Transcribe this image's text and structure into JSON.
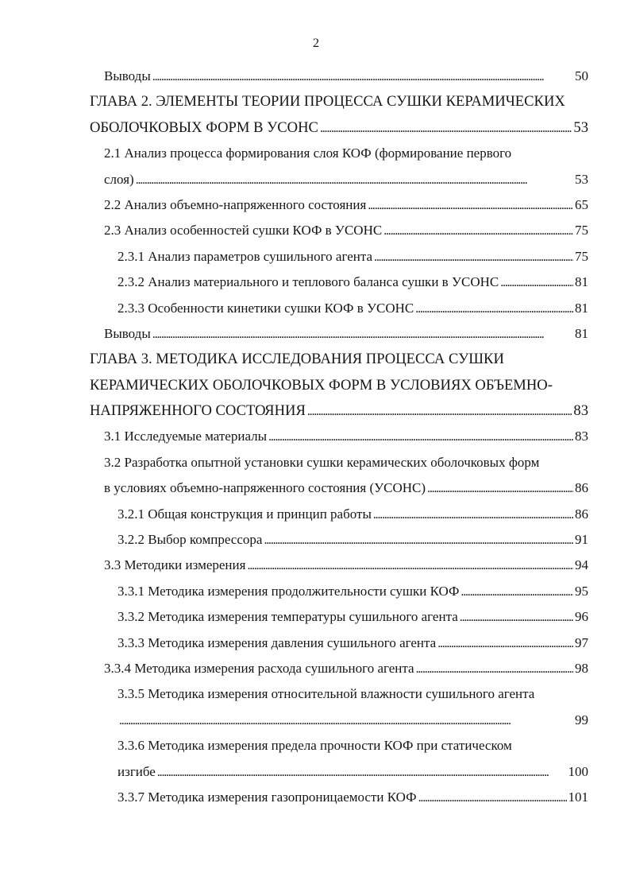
{
  "page_number": "2",
  "entries": [
    {
      "level": 1,
      "lines": [
        "Выводы"
      ],
      "page": "50"
    },
    {
      "level": 0,
      "lines": [
        "ГЛАВА 2. ЭЛЕМЕНТЫ ТЕОРИИ ПРОЦЕССА СУШКИ КЕРАМИЧЕСКИХ",
        "ОБОЛОЧКОВЫХ ФОРМ В УСОНС"
      ],
      "page": "53"
    },
    {
      "level": 1,
      "lines": [
        "2.1 Анализ процесса формирования слоя КОФ (формирование первого",
        "слоя)"
      ],
      "page": "53"
    },
    {
      "level": 1,
      "lines": [
        "2.2 Анализ объемно-напряженного состояния"
      ],
      "page": "65"
    },
    {
      "level": 1,
      "lines": [
        "2.3 Анализ особенностей сушки КОФ в УСОНС"
      ],
      "page": "75"
    },
    {
      "level": 2,
      "lines": [
        "2.3.1 Анализ параметров сушильного агента"
      ],
      "page": "75"
    },
    {
      "level": 2,
      "lines": [
        "2.3.2  Анализ материального и теплового баланса сушки в УСОНС"
      ],
      "page": "81"
    },
    {
      "level": 2,
      "lines": [
        "2.3.3  Особенности кинетики сушки КОФ в УСОНС"
      ],
      "page": "81"
    },
    {
      "level": 1,
      "lines": [
        "Выводы"
      ],
      "page": "81"
    },
    {
      "level": 0,
      "lines": [
        "ГЛАВА 3. МЕТОДИКА ИССЛЕДОВАНИЯ ПРОЦЕССА СУШКИ",
        "КЕРАМИЧЕСКИХ ОБОЛОЧКОВЫХ ФОРМ В УСЛОВИЯХ ОБЪЕМНО-",
        "НАПРЯЖЕННОГО СОСТОЯНИЯ"
      ],
      "page": "83"
    },
    {
      "level": 1,
      "lines": [
        "3.1 Исследуемые материалы"
      ],
      "page": "83"
    },
    {
      "level": 1,
      "lines": [
        "3.2 Разработка опытной установки сушки керамических оболочковых форм",
        "в условиях объемно-напряженного состояния (УСОНС)"
      ],
      "page": "86"
    },
    {
      "level": 2,
      "lines": [
        "3.2.1 Общая конструкция и принцип работы"
      ],
      "page": "86"
    },
    {
      "level": 2,
      "lines": [
        "3.2.2 Выбор компрессора"
      ],
      "page": "91"
    },
    {
      "level": 1,
      "lines": [
        "3.3 Методики измерения"
      ],
      "page": "94"
    },
    {
      "level": 2,
      "lines": [
        "3.3.1 Методика измерения продолжительности сушки КОФ"
      ],
      "page": "95"
    },
    {
      "level": 2,
      "lines": [
        "3.3.2 Методика измерения температуры сушильного агента"
      ],
      "page": "96"
    },
    {
      "level": 2,
      "lines": [
        "3.3.3 Методика измерения давления сушильного агента"
      ],
      "page": "97"
    },
    {
      "level": 1,
      "lines": [
        "3.3.4 Методика измерения расхода сушильного агента"
      ],
      "page": "98"
    },
    {
      "level": 2,
      "lines": [
        "3.3.5 Методика измерения относительной влажности сушильного агента",
        ""
      ],
      "page": "99"
    },
    {
      "level": 2,
      "lines": [
        "3.3.6 Методика измерения предела прочности КОФ при статическом",
        "изгибе"
      ],
      "page": "100"
    },
    {
      "level": 2,
      "lines": [
        "3.3.7 Методика измерения газопроницаемости КОФ"
      ],
      "page": "101"
    }
  ]
}
